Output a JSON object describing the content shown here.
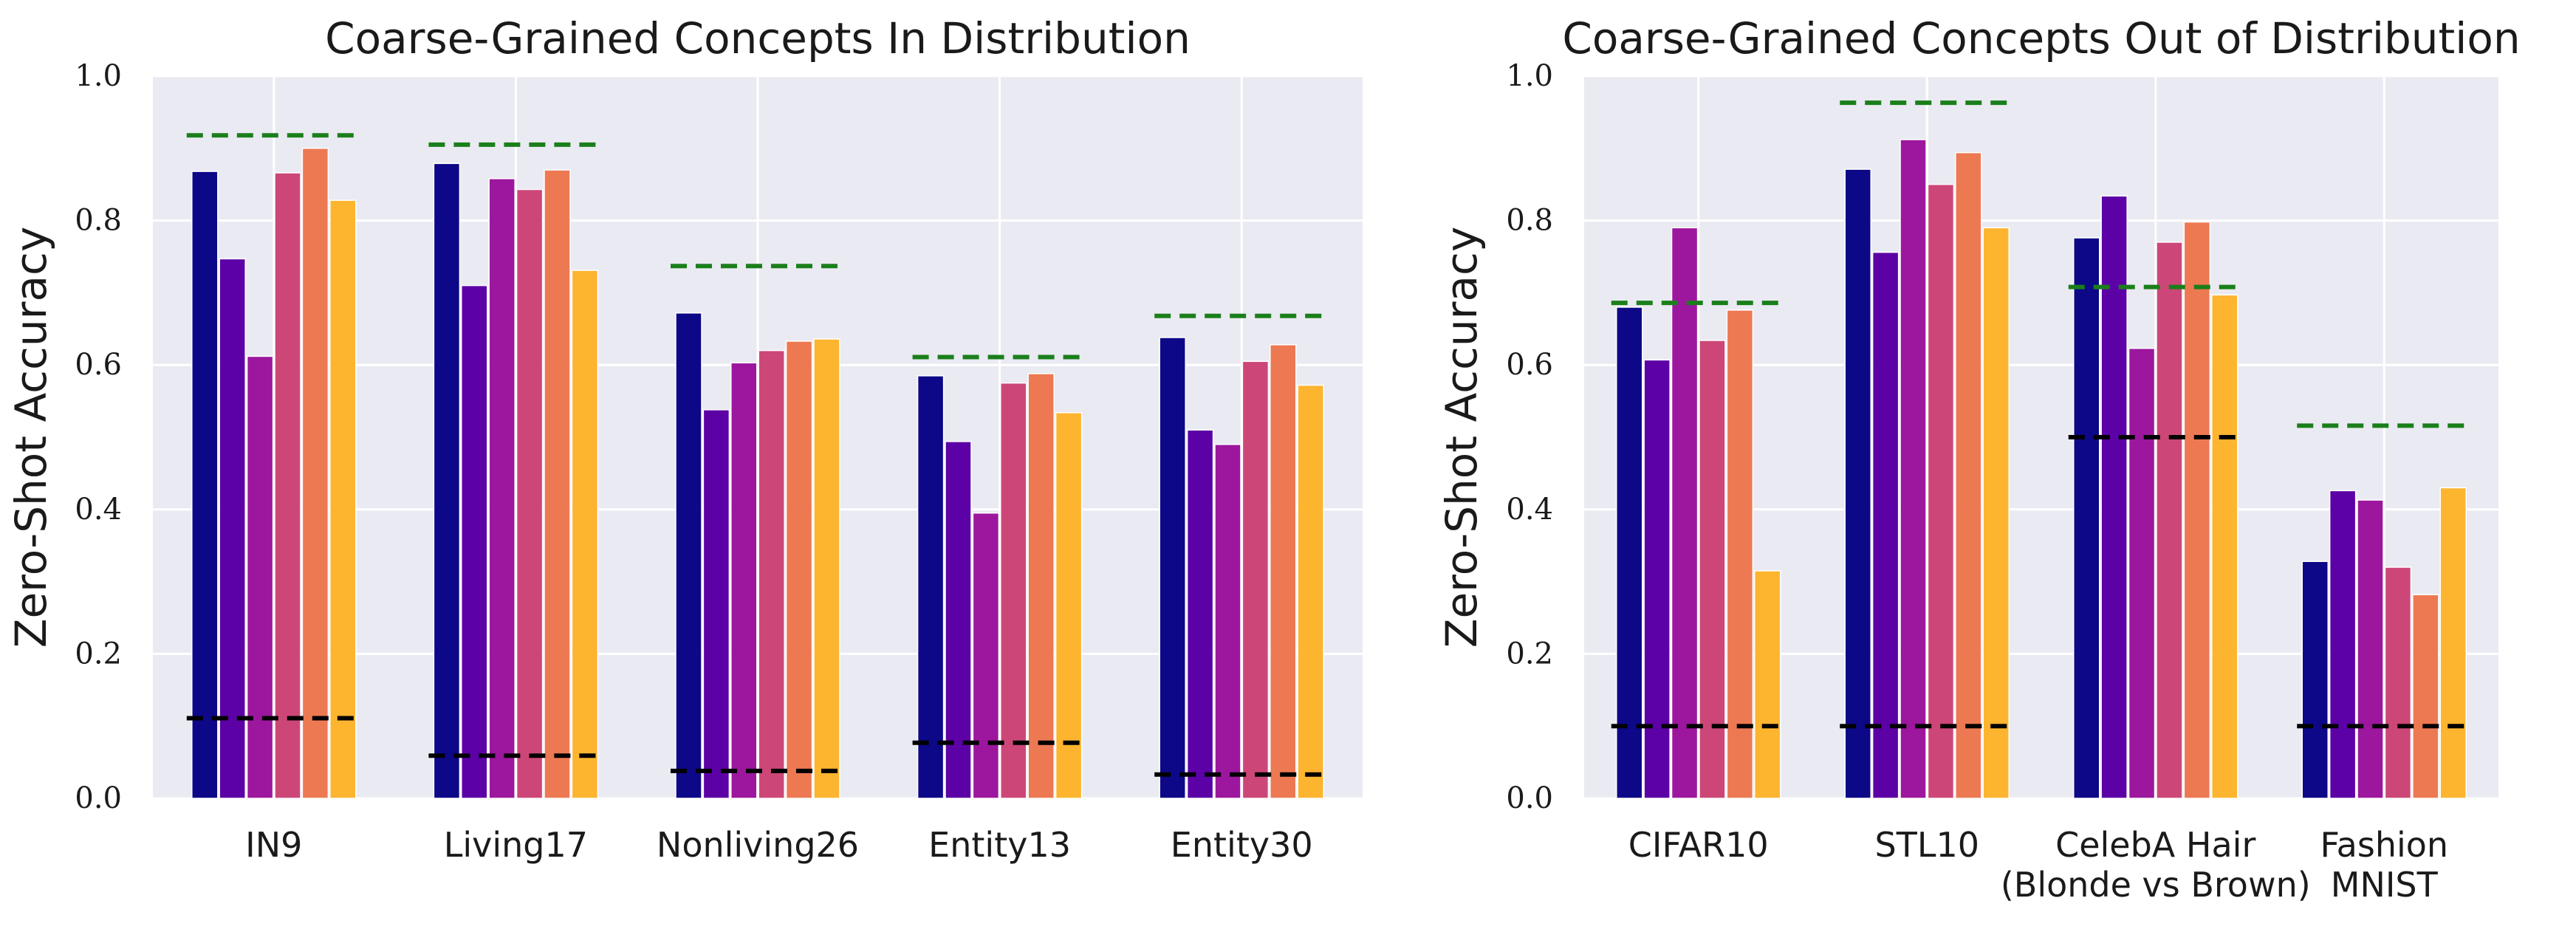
{
  "style": {
    "plot_background": "#eaeaf2",
    "grid_color": "#ffffff",
    "upper_reference_color": "#1a7f1a",
    "lower_reference_color": "#000000",
    "series_colors": [
      "#0d0887",
      "#5c01a6",
      "#9c179e",
      "#cc4778",
      "#ed7953",
      "#fdb42f"
    ]
  },
  "chart_data": [
    {
      "type": "bar",
      "title": "Coarse-Grained Concepts In Distribution",
      "ylabel": "Zero-Shot Accuracy",
      "xlabel": "",
      "ylim": [
        0,
        1.0
      ],
      "yticks": [
        "0.0",
        "0.2",
        "0.4",
        "0.6",
        "0.8",
        "1.0"
      ],
      "grid": true,
      "categories": [
        [
          "IN9"
        ],
        [
          "Living17"
        ],
        [
          "Nonliving26"
        ],
        [
          "Entity13"
        ],
        [
          "Entity30"
        ]
      ],
      "series": [
        {
          "values": [
            0.868,
            0.879,
            0.672,
            0.585,
            0.638
          ]
        },
        {
          "values": [
            0.747,
            0.71,
            0.538,
            0.494,
            0.51
          ]
        },
        {
          "values": [
            0.612,
            0.858,
            0.603,
            0.395,
            0.49
          ]
        },
        {
          "values": [
            0.866,
            0.843,
            0.62,
            0.575,
            0.605
          ]
        },
        {
          "values": [
            0.9,
            0.87,
            0.633,
            0.588,
            0.628
          ]
        },
        {
          "values": [
            0.828,
            0.731,
            0.636,
            0.534,
            0.572
          ]
        }
      ],
      "upper_reference": [
        0.918,
        0.905,
        0.737,
        0.611,
        0.668
      ],
      "lower_reference": [
        0.111,
        0.059,
        0.038,
        0.077,
        0.033
      ]
    },
    {
      "type": "bar",
      "title": "Coarse-Grained Concepts Out of Distribution",
      "ylabel": "Zero-Shot Accuracy",
      "xlabel": "",
      "ylim": [
        0,
        1.0
      ],
      "yticks": [
        "0.0",
        "0.2",
        "0.4",
        "0.6",
        "0.8",
        "1.0"
      ],
      "grid": true,
      "categories": [
        [
          "CIFAR10"
        ],
        [
          "STL10"
        ],
        [
          "CelebA Hair",
          "(Blonde vs Brown)"
        ],
        [
          "Fashion",
          "MNIST"
        ]
      ],
      "series": [
        {
          "values": [
            0.68,
            0.871,
            0.776,
            0.328
          ]
        },
        {
          "values": [
            0.607,
            0.756,
            0.834,
            0.426
          ]
        },
        {
          "values": [
            0.79,
            0.912,
            0.623,
            0.413
          ]
        },
        {
          "values": [
            0.634,
            0.85,
            0.77,
            0.32
          ]
        },
        {
          "values": [
            0.676,
            0.894,
            0.798,
            0.282
          ]
        },
        {
          "values": [
            0.315,
            0.79,
            0.697,
            0.43
          ]
        }
      ],
      "upper_reference": [
        0.686,
        0.963,
        0.708,
        0.516
      ],
      "lower_reference": [
        0.1,
        0.1,
        0.5,
        0.1
      ]
    }
  ]
}
